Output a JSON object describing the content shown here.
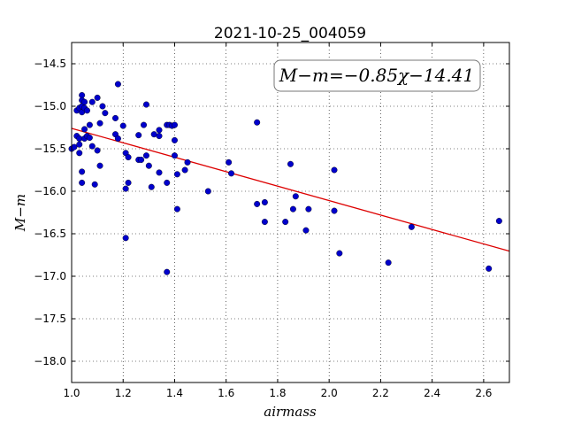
{
  "chart_data": {
    "type": "scatter",
    "title": "2021-10-25_004059",
    "xlabel": "airmass",
    "ylabel": "M−m",
    "annotation": "M−m=−0.85χ−14.41",
    "xlim": [
      1.0,
      2.7
    ],
    "ylim": [
      -18.25,
      -14.25
    ],
    "xticks": [
      "1.0",
      "1.2",
      "1.4",
      "1.6",
      "1.8",
      "2.0",
      "2.2",
      "2.4",
      "2.6"
    ],
    "yticks": [
      "−14.5",
      "−15.0",
      "−15.5",
      "−16.0",
      "−16.5",
      "−17.0",
      "−17.5",
      "−18.0"
    ],
    "grid": true,
    "colors": {
      "points": "#0000cc",
      "fit": "#dd0000"
    },
    "fit": {
      "slope": -0.85,
      "intercept": -14.41
    },
    "points": [
      [
        1.0,
        -15.5
      ],
      [
        1.01,
        -15.48
      ],
      [
        1.02,
        -15.05
      ],
      [
        1.02,
        -15.35
      ],
      [
        1.03,
        -15.45
      ],
      [
        1.03,
        -15.38
      ],
      [
        1.03,
        -15.02
      ],
      [
        1.04,
        -14.87
      ],
      [
        1.04,
        -14.93
      ],
      [
        1.04,
        -15.0
      ],
      [
        1.04,
        -15.07
      ],
      [
        1.05,
        -15.02
      ],
      [
        1.05,
        -14.95
      ],
      [
        1.05,
        -15.38
      ],
      [
        1.05,
        -15.27
      ],
      [
        1.04,
        -15.77
      ],
      [
        1.04,
        -15.9
      ],
      [
        1.06,
        -15.05
      ],
      [
        1.06,
        -15.35
      ],
      [
        1.07,
        -15.37
      ],
      [
        1.07,
        -15.22
      ],
      [
        1.08,
        -14.95
      ],
      [
        1.08,
        -15.47
      ],
      [
        1.09,
        -15.92
      ],
      [
        1.1,
        -15.52
      ],
      [
        1.1,
        -14.9
      ],
      [
        1.11,
        -15.2
      ],
      [
        1.11,
        -15.7
      ],
      [
        1.12,
        -15.0
      ],
      [
        1.13,
        -15.08
      ],
      [
        1.03,
        -15.55
      ],
      [
        1.17,
        -15.14
      ],
      [
        1.17,
        -15.33
      ],
      [
        1.18,
        -15.38
      ],
      [
        1.18,
        -14.74
      ],
      [
        1.2,
        -15.23
      ],
      [
        1.21,
        -15.55
      ],
      [
        1.21,
        -15.97
      ],
      [
        1.21,
        -16.55
      ],
      [
        1.22,
        -15.6
      ],
      [
        1.22,
        -15.9
      ],
      [
        1.26,
        -15.34
      ],
      [
        1.26,
        -15.63
      ],
      [
        1.27,
        -15.63
      ],
      [
        1.28,
        -15.22
      ],
      [
        1.29,
        -15.58
      ],
      [
        1.29,
        -14.98
      ],
      [
        1.3,
        -15.7
      ],
      [
        1.31,
        -15.95
      ],
      [
        1.32,
        -15.33
      ],
      [
        1.34,
        -15.78
      ],
      [
        1.34,
        -15.35
      ],
      [
        1.34,
        -15.28
      ],
      [
        1.37,
        -15.9
      ],
      [
        1.37,
        -15.22
      ],
      [
        1.38,
        -15.22
      ],
      [
        1.39,
        -15.23
      ],
      [
        1.4,
        -15.4
      ],
      [
        1.4,
        -15.22
      ],
      [
        1.4,
        -15.58
      ],
      [
        1.41,
        -15.8
      ],
      [
        1.41,
        -16.21
      ],
      [
        1.37,
        -16.95
      ],
      [
        1.44,
        -15.75
      ],
      [
        1.45,
        -15.66
      ],
      [
        1.53,
        -16.0
      ],
      [
        1.61,
        -15.66
      ],
      [
        1.62,
        -15.79
      ],
      [
        1.72,
        -15.19
      ],
      [
        1.72,
        -16.15
      ],
      [
        1.75,
        -16.13
      ],
      [
        1.75,
        -16.36
      ],
      [
        1.83,
        -16.36
      ],
      [
        1.85,
        -15.68
      ],
      [
        1.86,
        -16.21
      ],
      [
        1.87,
        -16.06
      ],
      [
        1.91,
        -16.46
      ],
      [
        1.92,
        -16.21
      ],
      [
        2.02,
        -15.75
      ],
      [
        2.02,
        -16.23
      ],
      [
        2.04,
        -16.73
      ],
      [
        2.23,
        -16.84
      ],
      [
        2.32,
        -16.42
      ],
      [
        2.62,
        -16.91
      ],
      [
        2.66,
        -16.35
      ]
    ]
  }
}
